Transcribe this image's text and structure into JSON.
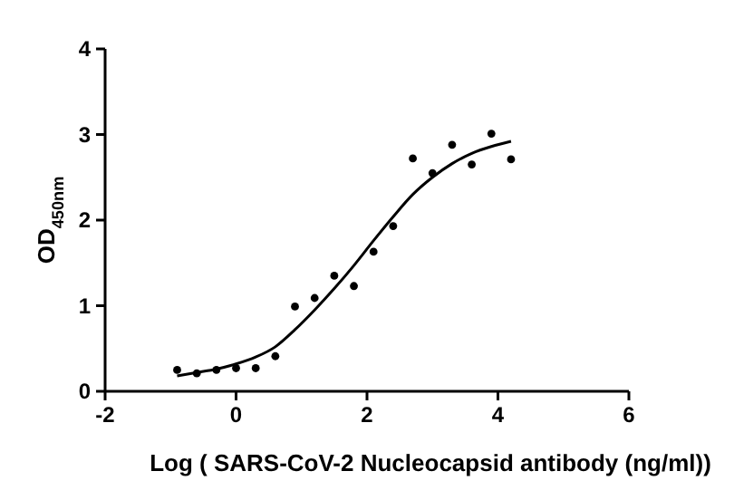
{
  "chart_data": {
    "type": "scatter",
    "xlabel": "Log ( SARS-CoV-2 Nucleocapsid antibody (ng/ml))",
    "ylabel": "OD$_{450nm}$",
    "xlim": [
      -2,
      6
    ],
    "ylim": [
      0,
      4
    ],
    "xticks": [
      -2,
      0,
      2,
      4,
      6
    ],
    "yticks": [
      0,
      1,
      2,
      3,
      4
    ],
    "grid": false,
    "marker": "circle",
    "series": [
      {
        "color": "#000000",
        "x": [
          -0.9,
          -0.6,
          -0.3,
          0,
          0.3,
          0.6,
          0.9,
          1.2,
          1.5,
          1.8,
          2.1,
          2.4,
          2.7,
          3.0,
          3.3,
          3.6,
          3.9,
          4.2
        ],
        "values": [
          0.25,
          0.21,
          0.25,
          0.27,
          0.27,
          0.41,
          0.99,
          1.09,
          1.35,
          1.23,
          1.63,
          1.93,
          2.72,
          2.55,
          2.88,
          2.65,
          3.01,
          2.71
        ]
      },
      {
        "type": "line",
        "color": "#000000",
        "line_style": "solid",
        "marker": "none",
        "x": [
          -0.9,
          -0.6,
          -0.3,
          0,
          0.3,
          0.6,
          0.9,
          1.2,
          1.5,
          1.8,
          2.1,
          2.4,
          2.7,
          3.0,
          3.3,
          3.6,
          3.9,
          4.2
        ],
        "values": [
          0.18,
          0.22,
          0.26,
          0.32,
          0.4,
          0.52,
          0.72,
          0.95,
          1.2,
          1.47,
          1.76,
          2.04,
          2.3,
          2.5,
          2.66,
          2.78,
          2.86,
          2.92
        ]
      }
    ]
  }
}
